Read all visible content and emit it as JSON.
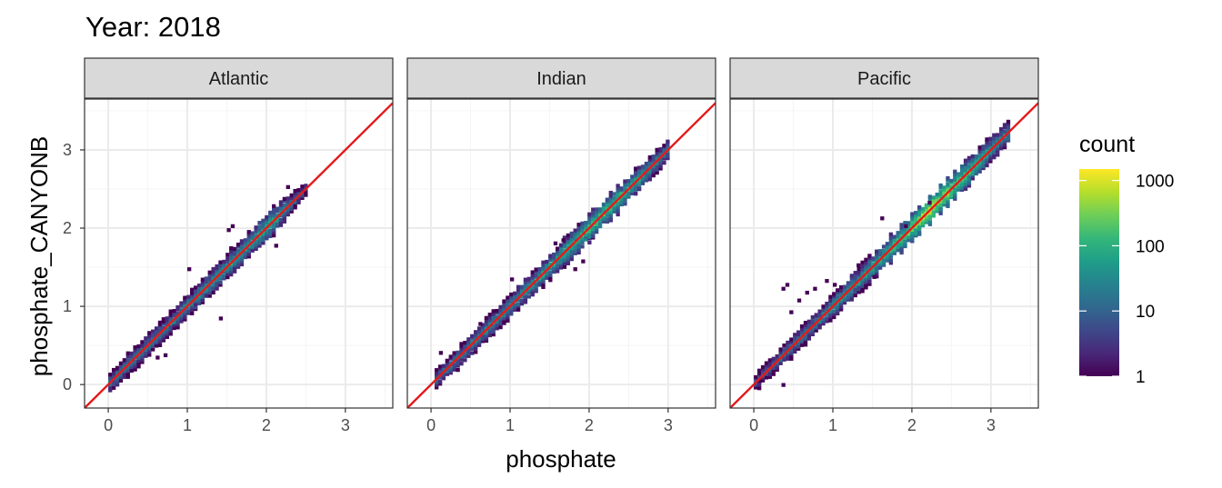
{
  "title": "Year: 2018",
  "xlabel": "phosphate",
  "ylabel": "phosphate_CANYONB",
  "colors": {
    "identity_line": "#e41a1c",
    "grid_major": "#ebebeb",
    "grid_minor": "#f5f5f5",
    "strip_fill": "#d9d9d9",
    "panel_border": "#333333",
    "viridis": [
      "#440154",
      "#482878",
      "#3e4989",
      "#31688e",
      "#26828e",
      "#1f9e89",
      "#35b779",
      "#6ece58",
      "#b5de2b",
      "#fde725"
    ]
  },
  "legend": {
    "title": "count",
    "scale": "log10",
    "breaks": [
      1,
      10,
      100,
      1000
    ],
    "labels": [
      "1",
      "10",
      "100",
      "1000"
    ],
    "range": [
      1,
      1500
    ]
  },
  "chart_data": {
    "type": "heatmap",
    "subtype": "2d-binned scatter (hex/rect bins) with identity line",
    "xlim": [
      -0.3,
      3.6
    ],
    "ylim": [
      -0.3,
      3.65
    ],
    "x_ticks": [
      0,
      1,
      2,
      3
    ],
    "y_ticks": [
      0,
      1,
      2,
      3
    ],
    "x_tick_labels": [
      "0",
      "1",
      "2",
      "3"
    ],
    "y_tick_labels": [
      "0",
      "1",
      "2",
      "3"
    ],
    "grid": true,
    "reference_line": {
      "slope": 1,
      "intercept": 0
    },
    "panels": [
      {
        "label": "Atlantic",
        "x_range": [
          0.0,
          2.5
        ],
        "y_range": [
          0.02,
          2.5
        ],
        "density": [
          {
            "x": 0.05,
            "count": 20
          },
          {
            "x": 0.3,
            "count": 30
          },
          {
            "x": 0.6,
            "count": 25
          },
          {
            "x": 0.9,
            "count": 35
          },
          {
            "x": 1.2,
            "count": 40
          },
          {
            "x": 1.5,
            "count": 60
          },
          {
            "x": 1.8,
            "count": 80
          },
          {
            "x": 2.0,
            "count": 120
          },
          {
            "x": 2.2,
            "count": 50
          },
          {
            "x": 2.45,
            "count": 5
          }
        ],
        "outliers": [
          {
            "x": 1.0,
            "y": 1.45
          },
          {
            "x": 1.4,
            "y": 0.82
          },
          {
            "x": 0.6,
            "y": 0.32
          },
          {
            "x": 0.7,
            "y": 0.35
          },
          {
            "x": 2.25,
            "y": 2.5
          },
          {
            "x": 1.5,
            "y": 1.95
          },
          {
            "x": 1.55,
            "y": 2.0
          },
          {
            "x": 2.1,
            "y": 1.75
          }
        ]
      },
      {
        "label": "Indian",
        "x_range": [
          0.05,
          3.0
        ],
        "y_range": [
          0.07,
          3.0
        ],
        "density": [
          {
            "x": 0.1,
            "count": 15
          },
          {
            "x": 0.5,
            "count": 30
          },
          {
            "x": 1.0,
            "count": 40
          },
          {
            "x": 1.5,
            "count": 80
          },
          {
            "x": 1.8,
            "count": 150
          },
          {
            "x": 2.0,
            "count": 200
          },
          {
            "x": 2.3,
            "count": 180
          },
          {
            "x": 2.6,
            "count": 90
          },
          {
            "x": 2.9,
            "count": 30
          }
        ],
        "outliers": [
          {
            "x": 1.0,
            "y": 1.32
          },
          {
            "x": 0.1,
            "y": 0.38
          },
          {
            "x": 0.6,
            "y": 0.75
          },
          {
            "x": 1.8,
            "y": 1.45
          },
          {
            "x": 1.9,
            "y": 1.55
          },
          {
            "x": 1.55,
            "y": 1.78
          },
          {
            "x": 1.65,
            "y": 1.82
          }
        ]
      },
      {
        "label": "Pacific",
        "x_range": [
          0.0,
          3.2
        ],
        "y_range": [
          -0.03,
          3.2
        ],
        "density": [
          {
            "x": 0.05,
            "count": 10
          },
          {
            "x": 0.4,
            "count": 20
          },
          {
            "x": 0.8,
            "count": 30
          },
          {
            "x": 1.2,
            "count": 60
          },
          {
            "x": 1.6,
            "count": 120
          },
          {
            "x": 1.9,
            "count": 300
          },
          {
            "x": 2.2,
            "count": 1200
          },
          {
            "x": 2.5,
            "count": 400
          },
          {
            "x": 2.8,
            "count": 150
          },
          {
            "x": 3.1,
            "count": 40
          }
        ],
        "outliers": [
          {
            "x": 0.35,
            "y": 1.2
          },
          {
            "x": 0.4,
            "y": 1.25
          },
          {
            "x": 0.45,
            "y": 0.9
          },
          {
            "x": 0.55,
            "y": 1.05
          },
          {
            "x": 0.65,
            "y": 1.15
          },
          {
            "x": 0.75,
            "y": 1.2
          },
          {
            "x": 0.9,
            "y": 1.3
          },
          {
            "x": 1.0,
            "y": 1.25
          },
          {
            "x": 1.3,
            "y": 1.5
          },
          {
            "x": 0.35,
            "y": -0.03
          },
          {
            "x": 0.05,
            "y": 0.02
          },
          {
            "x": 1.5,
            "y": 1.35
          },
          {
            "x": 1.6,
            "y": 2.1
          },
          {
            "x": 1.9,
            "y": 2.0
          },
          {
            "x": 2.2,
            "y": 2.3
          }
        ]
      }
    ]
  }
}
